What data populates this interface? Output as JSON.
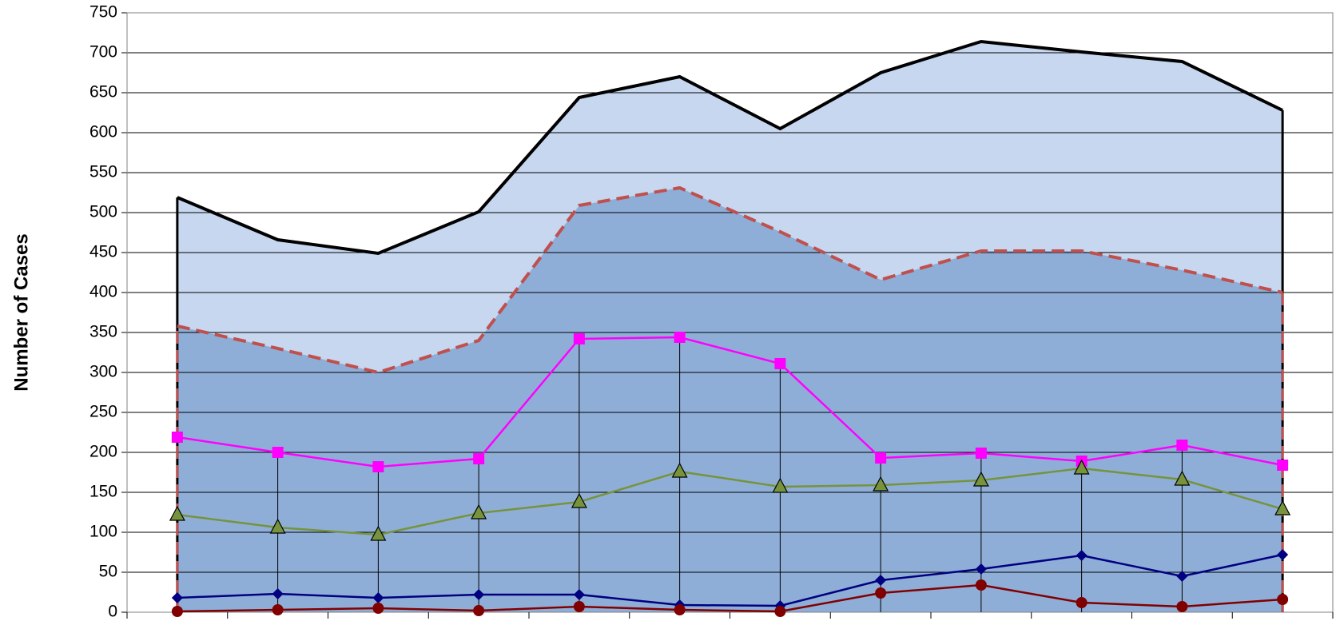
{
  "chart_data": {
    "type": "line",
    "ylabel": "Number of Cases",
    "ylim": [
      0,
      750
    ],
    "yticks": [
      0,
      50,
      100,
      150,
      200,
      250,
      300,
      350,
      400,
      450,
      500,
      550,
      600,
      650,
      700,
      750
    ],
    "grid": true,
    "drop_lines": true,
    "series": [
      {
        "color": "#000000",
        "fill": "#c6d7ef",
        "dash": false,
        "marker": "none",
        "values": [
          519,
          466,
          449,
          501,
          644,
          670,
          605,
          675,
          714,
          701,
          689,
          628
        ]
      },
      {
        "color": "#c0504d",
        "fill": "#8eaed8",
        "dash": true,
        "marker": "none",
        "values": [
          358,
          330,
          300,
          340,
          509,
          531,
          476,
          416,
          452,
          452,
          428,
          400
        ]
      },
      {
        "color": "#ff00ff",
        "dash": false,
        "marker": "square",
        "values": [
          219,
          200,
          182,
          192,
          342,
          344,
          311,
          193,
          199,
          189,
          209,
          184
        ]
      },
      {
        "color": "#77933c",
        "dash": false,
        "marker": "triangle",
        "values": [
          122,
          106,
          97,
          124,
          138,
          176,
          157,
          159,
          165,
          180,
          166,
          129
        ]
      },
      {
        "color": "#000080",
        "dash": false,
        "marker": "diamond",
        "values": [
          18,
          23,
          18,
          22,
          22,
          9,
          8,
          40,
          54,
          71,
          45,
          72
        ]
      },
      {
        "color": "#800000",
        "dash": false,
        "marker": "circle",
        "values": [
          1,
          3,
          5,
          2,
          7,
          3,
          1,
          24,
          34,
          12,
          7,
          16
        ]
      }
    ]
  }
}
